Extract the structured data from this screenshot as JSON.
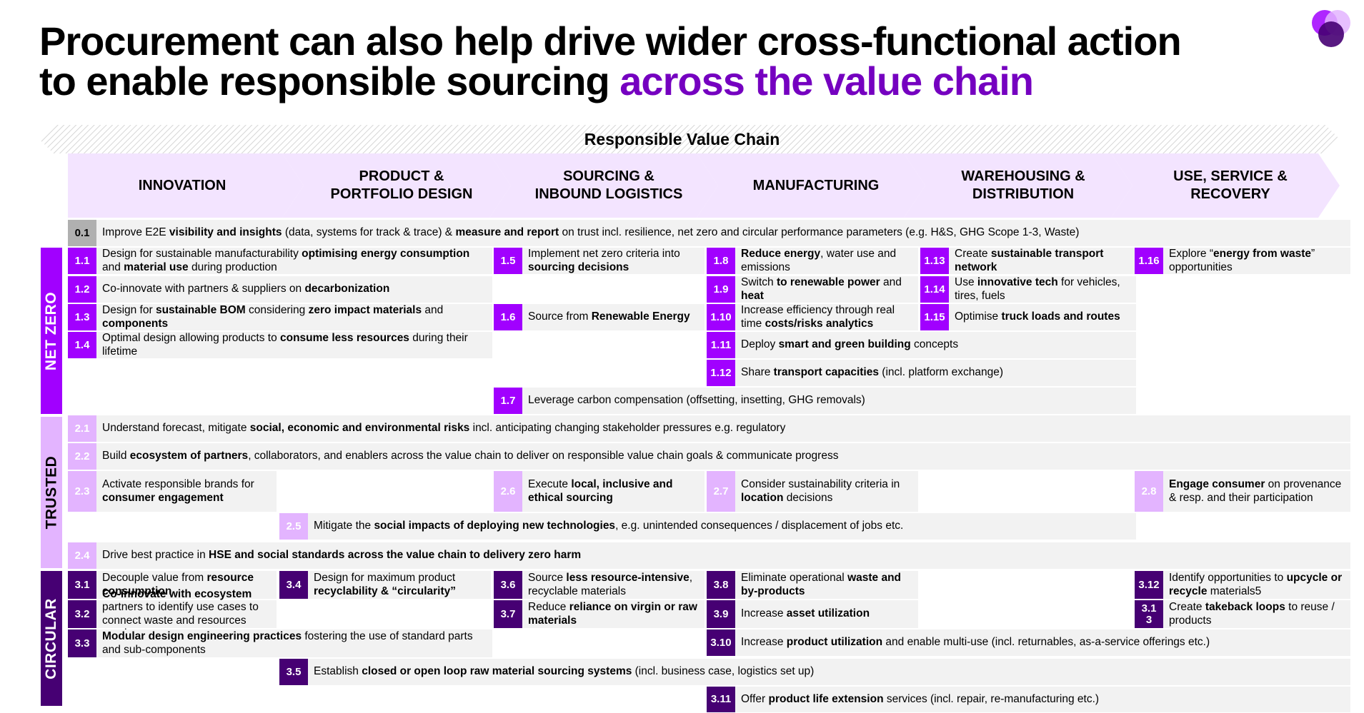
{
  "title": {
    "line1": "Procurement can also help drive wider cross-functional action",
    "line2_plain": "to enable responsible sourcing ",
    "line2_accent": "across the value chain"
  },
  "colors": {
    "accent": "#7500c0",
    "net_zero": "#a100ff",
    "trusted": "#e3b4ff",
    "circular": "#460073",
    "stage_fill": "#f3e4ff",
    "row_fill": "#f2f2f2"
  },
  "chain_title": "Responsible Value Chain",
  "stages": [
    "INNOVATION",
    "PRODUCT &\nPORTFOLIO DESIGN",
    "SOURCING &\nINBOUND LOGISTICS",
    "MANUFACTURING",
    "WAREHOUSING &\nDISTRIBUTION",
    "USE, SERVICE &\nRECOVERY"
  ],
  "categories": {
    "net_zero": "NET ZERO",
    "trusted": "TRUSTED",
    "circular": "CIRCULAR"
  },
  "items": {
    "0.1": {
      "num": "0.1",
      "html": "Improve E2E <b>visibility and insights</b> (data, systems for track &amp; trace) &amp; <b>measure and report</b> on trust incl. resilience, net zero and circular performance parameters (e.g. H&amp;S, GHG Scope 1-3, Waste)"
    },
    "1.1": {
      "num": "1.1",
      "html": "Design for sustainable manufacturability <b>optimising energy consumption</b> and <b>material use</b> during production"
    },
    "1.2": {
      "num": "1.2",
      "html": "Co-innovate with partners &amp; suppliers on <b>decarbonization</b>"
    },
    "1.3": {
      "num": "1.3",
      "html": "Design for <b>sustainable BOM</b> considering <b>zero impact materials</b> and <b>components</b>"
    },
    "1.4": {
      "num": "1.4",
      "html": "Optimal design allowing products to <b>consume less resources</b> during their lifetime"
    },
    "1.5": {
      "num": "1.5",
      "html": "Implement net zero criteria into <b>sourcing decisions</b>"
    },
    "1.6": {
      "num": "1.6",
      "html": "Source from <b>Renewable Energy</b>"
    },
    "1.7": {
      "num": "1.7",
      "html": "Leverage carbon compensation (offsetting, insetting, GHG removals)"
    },
    "1.8": {
      "num": "1.8",
      "html": "<b>Reduce energy</b>, water use and emissions"
    },
    "1.9": {
      "num": "1.9",
      "html": "Switch <b>to renewable power</b> and <b>heat</b>"
    },
    "1.10": {
      "num": "1.10",
      "html": "Increase efficiency through real time <b>costs/risks analytics</b>"
    },
    "1.11": {
      "num": "1.11",
      "html": "Deploy <b>smart and green building</b> concepts"
    },
    "1.12": {
      "num": "1.12",
      "html": "Share <b>transport capacities</b> (incl. platform exchange)"
    },
    "1.13": {
      "num": "1.13",
      "html": "Create <b>sustainable transport network</b>"
    },
    "1.14": {
      "num": "1.14",
      "html": "Use <b>innovative tech</b> for vehicles, tires, fuels"
    },
    "1.15": {
      "num": "1.15",
      "html": "Optimise <b>truck loads and routes</b>"
    },
    "1.16": {
      "num": "1.16",
      "html": "Explore “<b>energy from waste</b>” opportunities"
    },
    "2.1": {
      "num": "2.1",
      "html": "Understand forecast, mitigate <b>social, economic and environmental risks</b> incl. anticipating changing stakeholder pressures e.g. regulatory"
    },
    "2.2": {
      "num": "2.2",
      "html": "Build <b>ecosystem of partners</b>, collaborators, and enablers across the value chain to deliver on responsible value chain goals &amp; communicate progress"
    },
    "2.3": {
      "num": "2.3",
      "html": "Activate responsible brands for <b>consumer engagement</b>"
    },
    "2.4": {
      "num": "2.4",
      "html": "Drive best practice in <b>HSE and social standards across the value chain to delivery zero harm</b>"
    },
    "2.5": {
      "num": "2.5",
      "html": "Mitigate the <b>social impacts of deploying new technologies</b>, e.g. unintended consequences / displacement of jobs etc."
    },
    "2.6": {
      "num": "2.6",
      "html": "Execute <b>local, inclusive and ethical sourcing</b>"
    },
    "2.7": {
      "num": "2.7",
      "html": "Consider sustainability criteria in <b>location</b> decisions"
    },
    "2.8": {
      "num": "2.8",
      "html": "<b>Engage consumer</b> on provenance &amp; resp. and their participation"
    },
    "3.1": {
      "num": "3.1",
      "html": "Decouple value from <b>resource consumption</b>"
    },
    "3.2": {
      "num": "3.2",
      "html": "<b>Co-innovate with ecosystem</b> partners to identify use cases to connect waste and resources needs"
    },
    "3.3": {
      "num": "3.3",
      "html": "<b>Modular design engineering practices</b> fostering the use of standard parts and sub-components"
    },
    "3.4": {
      "num": "3.4",
      "html": "Design for maximum product <b>recyclability &amp; “circularity”</b>"
    },
    "3.5": {
      "num": "3.5",
      "html": "Establish <b>closed or open loop raw material sourcing systems</b> (incl. business case, logistics set up)"
    },
    "3.6": {
      "num": "3.6",
      "html": "Source <b>less resource-intensive</b>, recyclable materials"
    },
    "3.7": {
      "num": "3.7",
      "html": "Reduce <b>reliance on virgin or raw materials</b>"
    },
    "3.8": {
      "num": "3.8",
      "html": "Eliminate operational <b>waste and by-products</b>"
    },
    "3.9": {
      "num": "3.9",
      "html": "Increase <b>asset utilization</b>"
    },
    "3.10": {
      "num": "3.10",
      "html": "Increase <b>product utilization</b> and enable multi-use (incl. returnables, as-a-service offerings etc.)"
    },
    "3.11": {
      "num": "3.11",
      "html": "Offer <b>product life extension</b> services (incl. repair, re-manufacturing etc.)"
    },
    "3.12": {
      "num": "3.12",
      "html": "Identify opportunities to <b>upcycle or recycle</b> materials5"
    },
    "3.13": {
      "num": "3.1\n3",
      "html": "Create <b>takeback loops</b> to reuse / products"
    }
  }
}
